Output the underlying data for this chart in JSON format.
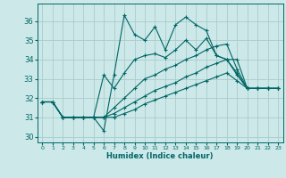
{
  "xlabel": "Humidex (Indice chaleur)",
  "ylabel": "",
  "xlim": [
    -0.5,
    23.5
  ],
  "ylim": [
    29.7,
    36.9
  ],
  "yticks": [
    30,
    31,
    32,
    33,
    34,
    35,
    36
  ],
  "xticks": [
    0,
    1,
    2,
    3,
    4,
    5,
    6,
    7,
    8,
    9,
    10,
    11,
    12,
    13,
    14,
    15,
    16,
    17,
    18,
    19,
    20,
    21,
    22,
    23
  ],
  "background_color": "#cde8e8",
  "grid_color": "#aacccc",
  "line_color": "#006666",
  "lines": [
    {
      "x": [
        0,
        1,
        2,
        3,
        4,
        5,
        6,
        7,
        8,
        9,
        10,
        11,
        12,
        13,
        14,
        15,
        16,
        17,
        18,
        19,
        20,
        21,
        22,
        23
      ],
      "y": [
        31.8,
        31.8,
        31.0,
        31.0,
        31.0,
        31.0,
        30.3,
        33.2,
        36.3,
        35.3,
        35.0,
        35.7,
        34.5,
        35.8,
        36.2,
        35.8,
        35.5,
        34.2,
        34.0,
        34.0,
        32.5,
        32.5,
        32.5,
        32.5
      ]
    },
    {
      "x": [
        0,
        1,
        2,
        3,
        4,
        5,
        6,
        7,
        8,
        9,
        10,
        11,
        12,
        13,
        14,
        15,
        16,
        17,
        18,
        19,
        20,
        21,
        22,
        23
      ],
      "y": [
        31.8,
        31.8,
        31.0,
        31.0,
        31.0,
        31.0,
        33.2,
        32.5,
        33.3,
        34.0,
        34.2,
        34.3,
        34.1,
        34.5,
        35.0,
        34.5,
        35.1,
        34.2,
        34.0,
        33.3,
        32.5,
        32.5,
        32.5,
        32.5
      ]
    },
    {
      "x": [
        0,
        1,
        2,
        3,
        4,
        5,
        6,
        7,
        8,
        9,
        10,
        11,
        12,
        13,
        14,
        15,
        16,
        17,
        18,
        19,
        20,
        21,
        22,
        23
      ],
      "y": [
        31.8,
        31.8,
        31.0,
        31.0,
        31.0,
        31.0,
        31.0,
        31.5,
        32.0,
        32.5,
        33.0,
        33.2,
        33.5,
        33.7,
        34.0,
        34.2,
        34.5,
        34.7,
        34.8,
        33.5,
        32.5,
        32.5,
        32.5,
        32.5
      ]
    },
    {
      "x": [
        0,
        1,
        2,
        3,
        4,
        5,
        6,
        7,
        8,
        9,
        10,
        11,
        12,
        13,
        14,
        15,
        16,
        17,
        18,
        19,
        20,
        21,
        22,
        23
      ],
      "y": [
        31.8,
        31.8,
        31.0,
        31.0,
        31.0,
        31.0,
        31.0,
        31.2,
        31.5,
        31.8,
        32.1,
        32.4,
        32.6,
        32.8,
        33.1,
        33.3,
        33.6,
        33.8,
        34.0,
        33.2,
        32.5,
        32.5,
        32.5,
        32.5
      ]
    },
    {
      "x": [
        0,
        1,
        2,
        3,
        4,
        5,
        6,
        7,
        8,
        9,
        10,
        11,
        12,
        13,
        14,
        15,
        16,
        17,
        18,
        19,
        20,
        21,
        22,
        23
      ],
      "y": [
        31.8,
        31.8,
        31.0,
        31.0,
        31.0,
        31.0,
        31.0,
        31.0,
        31.2,
        31.4,
        31.7,
        31.9,
        32.1,
        32.3,
        32.5,
        32.7,
        32.9,
        33.1,
        33.3,
        32.9,
        32.5,
        32.5,
        32.5,
        32.5
      ]
    }
  ]
}
